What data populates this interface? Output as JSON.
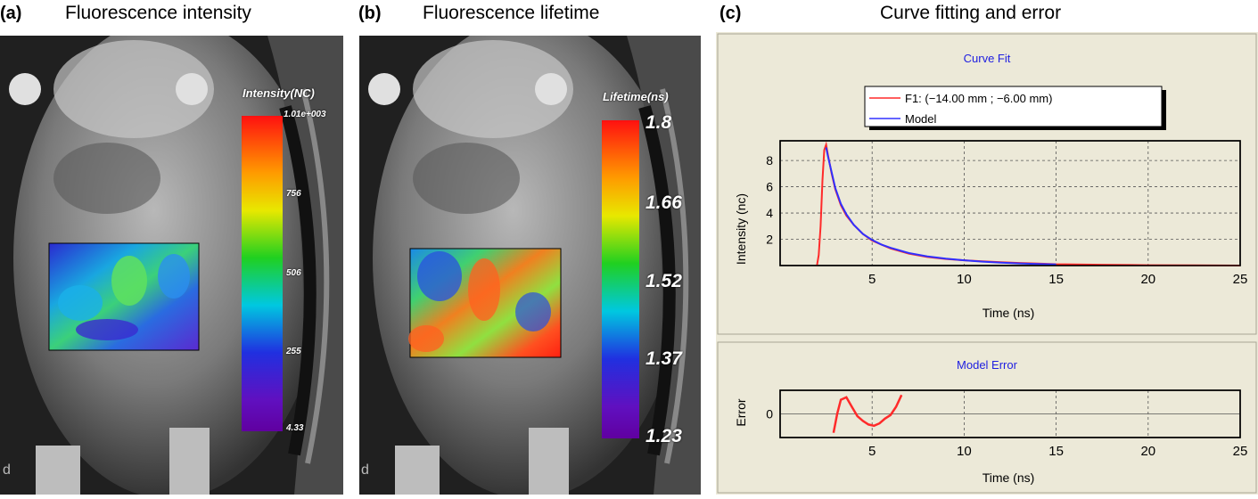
{
  "panels": {
    "a": {
      "label": "(a)",
      "title": "Fluorescence intensity",
      "colorbar_title": "Intensity(NC)",
      "colorbar_ticks": [
        "1.01e+003",
        "756",
        "506",
        "255",
        "4.33"
      ],
      "corner_letter": "d"
    },
    "b": {
      "label": "(b)",
      "title": "Fluorescence lifetime",
      "colorbar_title": "Lifetime(ns)",
      "colorbar_ticks": [
        "1.8",
        "1.66",
        "1.52",
        "1.37",
        "1.23"
      ],
      "corner_letter": "d"
    },
    "c": {
      "label": "(c)",
      "title": "Curve fitting and error"
    }
  },
  "chart_data": [
    {
      "type": "line",
      "title": "Curve Fit",
      "xlabel": "Time (ns)",
      "ylabel": "Intensity (nc)",
      "xlim": [
        0,
        25
      ],
      "ylim": [
        0,
        9.5
      ],
      "xticks": [
        5,
        10,
        15,
        20,
        25
      ],
      "yticks": [
        2,
        4,
        6,
        8
      ],
      "grid": true,
      "legend": "top-center",
      "series": [
        {
          "name": "F1: (−14.00 mm ; −6.00 mm)",
          "color": "#ff2a2a",
          "x": [
            2.0,
            2.1,
            2.2,
            2.3,
            2.4,
            2.5,
            2.6,
            2.8,
            3.0,
            3.3,
            3.6,
            4.0,
            4.5,
            5.0,
            5.5,
            6.0,
            7.0,
            8.0,
            9.0,
            10.0,
            11.0,
            12.0,
            13.0,
            14.0,
            15.0,
            17.5,
            20.0,
            22.5,
            25.0
          ],
          "y": [
            0.0,
            0.8,
            3.0,
            6.5,
            8.8,
            9.2,
            8.4,
            7.0,
            5.8,
            4.6,
            3.8,
            3.1,
            2.4,
            1.9,
            1.6,
            1.3,
            0.9,
            0.65,
            0.5,
            0.4,
            0.32,
            0.25,
            0.2,
            0.15,
            0.1,
            0.06,
            0.03,
            0.02,
            0.0
          ]
        },
        {
          "name": "Model",
          "color": "#3030ff",
          "x": [
            2.5,
            2.6,
            2.8,
            3.0,
            3.3,
            3.6,
            4.0,
            4.5,
            5.0,
            5.5,
            6.0,
            7.0,
            8.0,
            9.0,
            10.0,
            11.0,
            12.0,
            13.0,
            14.0,
            15.0
          ],
          "y": [
            9.0,
            8.3,
            7.1,
            5.9,
            4.7,
            3.9,
            3.1,
            2.4,
            1.95,
            1.6,
            1.35,
            0.95,
            0.7,
            0.52,
            0.4,
            0.3,
            0.22,
            0.16,
            0.12,
            0.08
          ]
        }
      ]
    },
    {
      "type": "line",
      "title": "Model Error",
      "xlabel": "Time (ns)",
      "ylabel": "Error",
      "xlim": [
        0,
        25
      ],
      "ylim": [
        -1,
        1
      ],
      "xticks": [
        5,
        10,
        15,
        20,
        25
      ],
      "yticks": [
        0
      ],
      "grid": true,
      "series": [
        {
          "color": "#ff2a2a",
          "x": [
            2.9,
            3.1,
            3.3,
            3.6,
            3.9,
            4.2,
            4.5,
            4.8,
            5.1,
            5.4,
            5.7,
            6.0,
            6.3,
            6.6
          ],
          "y": [
            -0.8,
            0.0,
            0.6,
            0.7,
            0.3,
            -0.1,
            -0.3,
            -0.45,
            -0.5,
            -0.4,
            -0.2,
            -0.05,
            0.3,
            0.8
          ]
        }
      ]
    }
  ]
}
